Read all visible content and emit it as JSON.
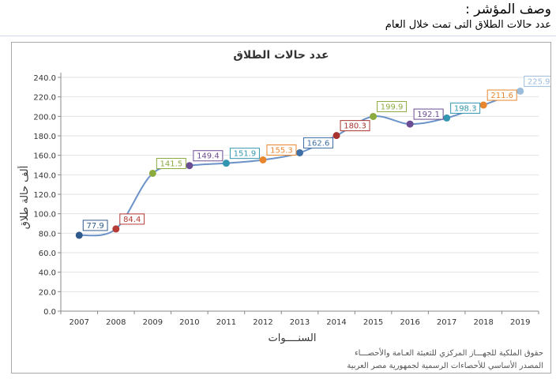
{
  "header": {
    "title": "وصف المؤشر :",
    "description": "عدد حالات الطلاق التى تمت خلال العام"
  },
  "chart_data": {
    "type": "line",
    "title": "عدد حالات الطلاق",
    "xlabel": "السنــــوات",
    "ylabel": "ألف حالة طلاق",
    "categories": [
      "2007",
      "2008",
      "2009",
      "2010",
      "2011",
      "2012",
      "2013",
      "2014",
      "2015",
      "2016",
      "2017",
      "2018",
      "2019"
    ],
    "values": [
      77.9,
      84.4,
      141.5,
      149.4,
      151.9,
      155.3,
      162.6,
      180.3,
      199.9,
      192.1,
      198.3,
      211.6,
      225.9
    ],
    "value_labels": [
      "77.9",
      "84.4",
      "141.5",
      "149.4",
      "151.9",
      "155.3",
      "162.6",
      "180.3",
      "199.9",
      "192.1",
      "198.3",
      "211.6",
      "225.9"
    ],
    "ylim": [
      0,
      240
    ],
    "y_ticks": [
      "0.0",
      "20.0",
      "40.0",
      "60.0",
      "80.0",
      "100.0",
      "120.0",
      "140.0",
      "160.0",
      "180.0",
      "200.0",
      "220.0",
      "240.0"
    ],
    "grid": true,
    "line_color": "#6b93c9",
    "point_colors": [
      "#2f5a8c",
      "#b63a36",
      "#8bab3f",
      "#6b4d93",
      "#3396b0",
      "#e8862e",
      "#3e6ea6",
      "#a8342f",
      "#8bab3f",
      "#6b4d93",
      "#3396b0",
      "#e8862e",
      "#9cbcdc"
    ]
  },
  "footer": {
    "credit_line1": "حقوق الملكية للجهـــاز المركزي للتعبئة العـامة والأحصـــاء",
    "credit_line2": "المصدر الأساسي للأحصاءات الرسمية لجمهورية مصر العربية"
  }
}
